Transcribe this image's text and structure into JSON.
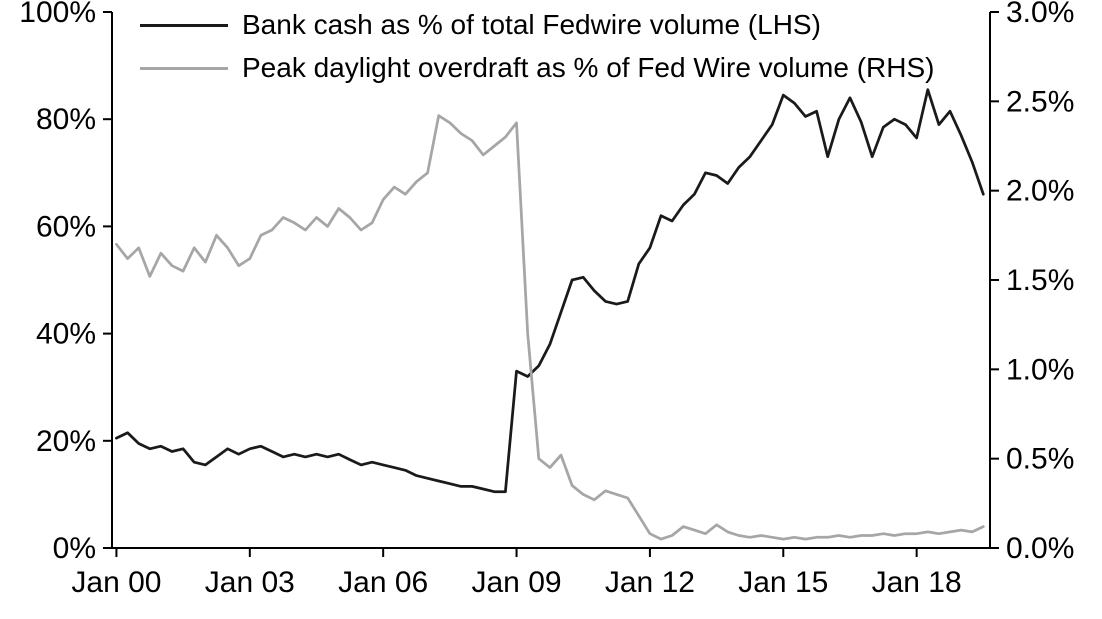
{
  "chart_data": {
    "type": "line",
    "title": "",
    "grid": false,
    "legend_position": "top-left-inside",
    "x_range": [
      1999.9,
      2019.65
    ],
    "x_start": 2000.0,
    "x_step_years": 0.25,
    "x_tick_years": [
      2000,
      2003,
      2006,
      2009,
      2012,
      2015,
      2018
    ],
    "x_tick_labels": [
      "Jan 00",
      "Jan 03",
      "Jan 06",
      "Jan 09",
      "Jan 12",
      "Jan 15",
      "Jan 18"
    ],
    "left_axis": {
      "range": [
        0,
        100
      ],
      "ticks": [
        0,
        20,
        40,
        60,
        80,
        100
      ],
      "labels": [
        "0%",
        "20%",
        "40%",
        "60%",
        "80%",
        "100%"
      ]
    },
    "right_axis": {
      "range": [
        0,
        3
      ],
      "ticks": [
        0,
        0.5,
        1,
        1.5,
        2,
        2.5,
        3
      ],
      "labels": [
        "0.0%",
        "0.5%",
        "1.0%",
        "1.5%",
        "2.0%",
        "2.5%",
        "3.0%"
      ]
    },
    "series": [
      {
        "name": "Bank cash as % of total Fedwire volume (LHS)",
        "axis": "left",
        "color": "#1a1a1a",
        "values": [
          20.5,
          21.5,
          19.5,
          18.5,
          19,
          18,
          18.5,
          16,
          15.5,
          17,
          18.5,
          17.5,
          18.5,
          19,
          18,
          17,
          17.5,
          17,
          17.5,
          17,
          17.5,
          16.5,
          15.5,
          16,
          15.5,
          15,
          14.5,
          13.5,
          13,
          12.5,
          12,
          11.5,
          11.5,
          11,
          10.5,
          10.5,
          33,
          32,
          34,
          38,
          44,
          50,
          50.5,
          48,
          46,
          45.5,
          46,
          53,
          56,
          62,
          61,
          64,
          66,
          70,
          69.5,
          68,
          71,
          73,
          76,
          79,
          84.5,
          83,
          80.5,
          81.5,
          73,
          80,
          84,
          79.5,
          73,
          78.5,
          80,
          79,
          76.5,
          85.5,
          79,
          81.5,
          77,
          72,
          66
        ]
      },
      {
        "name": "Peak daylight overdraft as % of Fed Wire volume (RHS)",
        "axis": "right",
        "color": "#a6a6a6",
        "values": [
          1.7,
          1.62,
          1.68,
          1.52,
          1.65,
          1.58,
          1.55,
          1.68,
          1.6,
          1.75,
          1.68,
          1.58,
          1.62,
          1.75,
          1.78,
          1.85,
          1.82,
          1.78,
          1.85,
          1.8,
          1.9,
          1.85,
          1.78,
          1.82,
          1.95,
          2.02,
          1.98,
          2.05,
          2.1,
          2.42,
          2.38,
          2.32,
          2.28,
          2.2,
          2.25,
          2.3,
          2.38,
          1.2,
          0.5,
          0.45,
          0.52,
          0.35,
          0.3,
          0.27,
          0.32,
          0.3,
          0.28,
          0.18,
          0.08,
          0.05,
          0.07,
          0.12,
          0.1,
          0.08,
          0.13,
          0.09,
          0.07,
          0.06,
          0.07,
          0.06,
          0.05,
          0.06,
          0.05,
          0.06,
          0.06,
          0.07,
          0.06,
          0.07,
          0.07,
          0.08,
          0.07,
          0.08,
          0.08,
          0.09,
          0.08,
          0.09,
          0.1,
          0.09,
          0.12
        ]
      }
    ]
  }
}
